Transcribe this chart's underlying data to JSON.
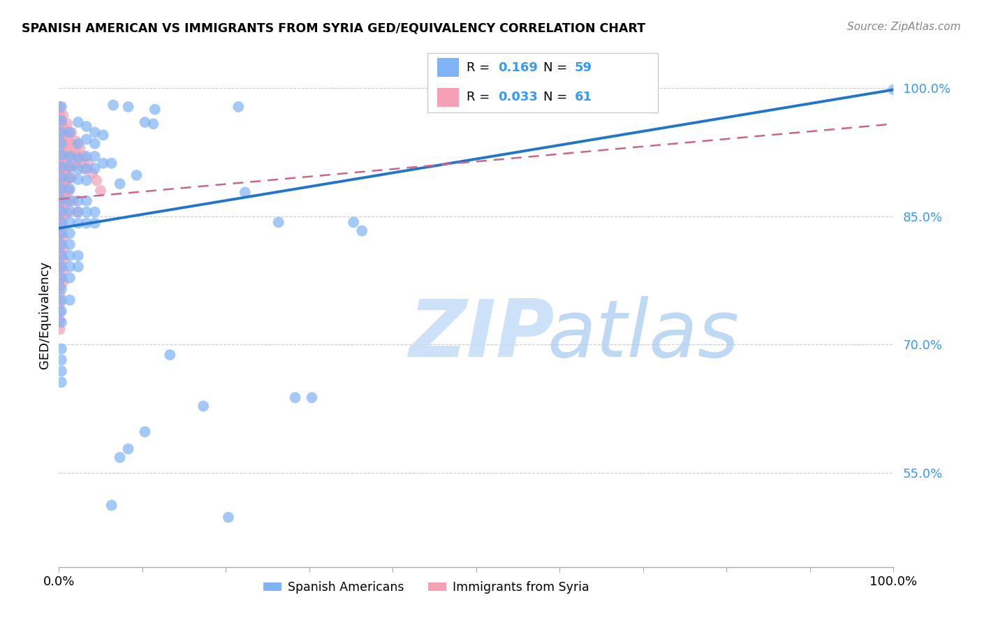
{
  "title": "SPANISH AMERICAN VS IMMIGRANTS FROM SYRIA GED/EQUIVALENCY CORRELATION CHART",
  "source": "Source: ZipAtlas.com",
  "ylabel": "GED/Equivalency",
  "xlim": [
    0,
    1.0
  ],
  "ylim": [
    0.44,
    1.03
  ],
  "y_tick_values": [
    0.55,
    0.7,
    0.85,
    1.0
  ],
  "y_tick_labels": [
    "55.0%",
    "70.0%",
    "85.0%",
    "100.0%"
  ],
  "blue_color": "#7fb3f5",
  "pink_color": "#f5a0b5",
  "trend_blue": "#2176cc",
  "trend_pink": "#cc6688",
  "label_color": "#3399ff",
  "blue_line": {
    "x0": 0.0,
    "y0": 0.836,
    "x1": 1.0,
    "y1": 0.998
  },
  "pink_line": {
    "x0": 0.0,
    "y0": 0.87,
    "x1": 1.0,
    "y1": 0.958
  },
  "blue_scatter": [
    [
      0.003,
      0.978
    ],
    [
      0.065,
      0.98
    ],
    [
      0.115,
      0.975
    ],
    [
      0.215,
      0.978
    ],
    [
      0.003,
      0.962
    ],
    [
      0.003,
      0.948
    ],
    [
      0.003,
      0.935
    ],
    [
      0.003,
      0.922
    ],
    [
      0.013,
      0.948
    ],
    [
      0.023,
      0.96
    ],
    [
      0.023,
      0.935
    ],
    [
      0.033,
      0.955
    ],
    [
      0.033,
      0.94
    ],
    [
      0.043,
      0.948
    ],
    [
      0.043,
      0.935
    ],
    [
      0.053,
      0.945
    ],
    [
      0.003,
      0.908
    ],
    [
      0.003,
      0.895
    ],
    [
      0.003,
      0.882
    ],
    [
      0.003,
      0.869
    ],
    [
      0.013,
      0.92
    ],
    [
      0.013,
      0.908
    ],
    [
      0.013,
      0.895
    ],
    [
      0.013,
      0.882
    ],
    [
      0.023,
      0.918
    ],
    [
      0.023,
      0.905
    ],
    [
      0.023,
      0.893
    ],
    [
      0.033,
      0.92
    ],
    [
      0.033,
      0.906
    ],
    [
      0.033,
      0.892
    ],
    [
      0.043,
      0.92
    ],
    [
      0.043,
      0.906
    ],
    [
      0.053,
      0.912
    ],
    [
      0.063,
      0.912
    ],
    [
      0.073,
      0.888
    ],
    [
      0.003,
      0.856
    ],
    [
      0.003,
      0.843
    ],
    [
      0.003,
      0.83
    ],
    [
      0.003,
      0.817
    ],
    [
      0.003,
      0.804
    ],
    [
      0.013,
      0.868
    ],
    [
      0.013,
      0.856
    ],
    [
      0.013,
      0.843
    ],
    [
      0.013,
      0.83
    ],
    [
      0.013,
      0.817
    ],
    [
      0.023,
      0.868
    ],
    [
      0.023,
      0.855
    ],
    [
      0.023,
      0.842
    ],
    [
      0.033,
      0.868
    ],
    [
      0.033,
      0.855
    ],
    [
      0.033,
      0.842
    ],
    [
      0.043,
      0.855
    ],
    [
      0.043,
      0.842
    ],
    [
      0.003,
      0.791
    ],
    [
      0.003,
      0.778
    ],
    [
      0.003,
      0.765
    ],
    [
      0.013,
      0.804
    ],
    [
      0.013,
      0.791
    ],
    [
      0.013,
      0.778
    ],
    [
      0.023,
      0.804
    ],
    [
      0.023,
      0.791
    ],
    [
      0.003,
      0.752
    ],
    [
      0.003,
      0.739
    ],
    [
      0.013,
      0.752
    ],
    [
      0.003,
      0.726
    ],
    [
      0.003,
      0.695
    ],
    [
      0.003,
      0.682
    ],
    [
      0.003,
      0.669
    ],
    [
      0.003,
      0.656
    ],
    [
      0.083,
      0.978
    ],
    [
      0.093,
      0.898
    ],
    [
      0.103,
      0.96
    ],
    [
      0.113,
      0.958
    ],
    [
      0.133,
      0.688
    ],
    [
      0.173,
      0.628
    ],
    [
      0.103,
      0.598
    ],
    [
      0.073,
      0.568
    ],
    [
      0.083,
      0.578
    ],
    [
      0.063,
      0.512
    ],
    [
      0.203,
      0.498
    ],
    [
      0.223,
      0.878
    ],
    [
      0.263,
      0.843
    ],
    [
      0.283,
      0.638
    ],
    [
      0.303,
      0.638
    ],
    [
      0.353,
      0.843
    ],
    [
      0.363,
      0.833
    ],
    [
      1.0,
      0.998
    ]
  ],
  "pink_scatter": [
    [
      0.001,
      0.978
    ],
    [
      0.001,
      0.968
    ],
    [
      0.001,
      0.958
    ],
    [
      0.001,
      0.948
    ],
    [
      0.001,
      0.938
    ],
    [
      0.001,
      0.928
    ],
    [
      0.001,
      0.918
    ],
    [
      0.001,
      0.908
    ],
    [
      0.001,
      0.898
    ],
    [
      0.001,
      0.888
    ],
    [
      0.001,
      0.878
    ],
    [
      0.001,
      0.868
    ],
    [
      0.001,
      0.858
    ],
    [
      0.001,
      0.848
    ],
    [
      0.001,
      0.838
    ],
    [
      0.001,
      0.828
    ],
    [
      0.001,
      0.818
    ],
    [
      0.001,
      0.808
    ],
    [
      0.001,
      0.798
    ],
    [
      0.001,
      0.788
    ],
    [
      0.001,
      0.778
    ],
    [
      0.001,
      0.768
    ],
    [
      0.001,
      0.758
    ],
    [
      0.001,
      0.748
    ],
    [
      0.001,
      0.738
    ],
    [
      0.001,
      0.728
    ],
    [
      0.001,
      0.718
    ],
    [
      0.005,
      0.968
    ],
    [
      0.005,
      0.955
    ],
    [
      0.005,
      0.942
    ],
    [
      0.005,
      0.929
    ],
    [
      0.005,
      0.916
    ],
    [
      0.005,
      0.903
    ],
    [
      0.005,
      0.89
    ],
    [
      0.005,
      0.877
    ],
    [
      0.005,
      0.864
    ],
    [
      0.005,
      0.851
    ],
    [
      0.005,
      0.838
    ],
    [
      0.005,
      0.825
    ],
    [
      0.005,
      0.812
    ],
    [
      0.005,
      0.799
    ],
    [
      0.005,
      0.786
    ],
    [
      0.005,
      0.773
    ],
    [
      0.01,
      0.958
    ],
    [
      0.01,
      0.945
    ],
    [
      0.01,
      0.932
    ],
    [
      0.01,
      0.919
    ],
    [
      0.01,
      0.906
    ],
    [
      0.01,
      0.893
    ],
    [
      0.01,
      0.88
    ],
    [
      0.01,
      0.867
    ],
    [
      0.01,
      0.854
    ],
    [
      0.015,
      0.948
    ],
    [
      0.015,
      0.935
    ],
    [
      0.015,
      0.922
    ],
    [
      0.015,
      0.908
    ],
    [
      0.015,
      0.895
    ],
    [
      0.02,
      0.938
    ],
    [
      0.02,
      0.925
    ],
    [
      0.02,
      0.91
    ],
    [
      0.025,
      0.93
    ],
    [
      0.025,
      0.916
    ],
    [
      0.03,
      0.92
    ],
    [
      0.03,
      0.905
    ],
    [
      0.035,
      0.912
    ],
    [
      0.04,
      0.9
    ],
    [
      0.045,
      0.892
    ],
    [
      0.05,
      0.88
    ],
    [
      0.007,
      0.905
    ],
    [
      0.007,
      0.892
    ],
    [
      0.012,
      0.88
    ],
    [
      0.017,
      0.868
    ],
    [
      0.022,
      0.855
    ]
  ]
}
